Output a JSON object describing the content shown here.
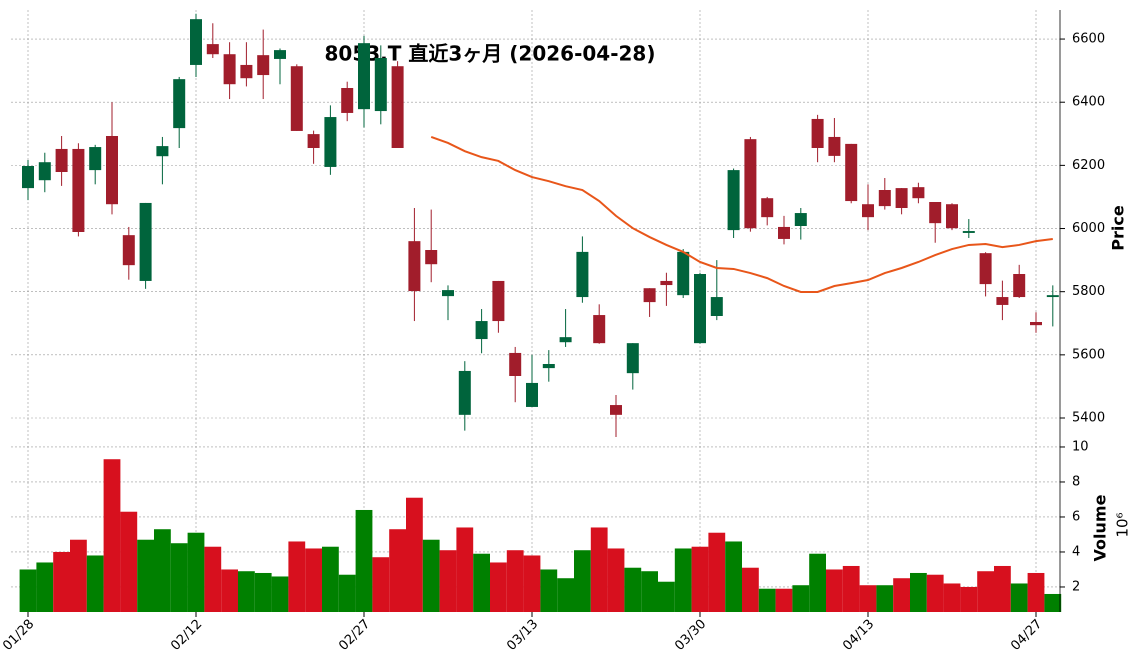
{
  "chart_data": [
    {
      "type": "candlestick",
      "title": "8053.T 直近3ヶ月 (2026-04-28)",
      "ylabel": "Price",
      "open": [
        6128,
        6153,
        6252,
        6252,
        6185,
        6293,
        5979,
        5834,
        6229,
        6318,
        6518,
        6584,
        6552,
        6518,
        6549,
        6537,
        6514,
        6299,
        6195,
        6445,
        6378,
        6372,
        6514,
        5960,
        5932,
        5786,
        5410,
        5650,
        5834,
        5606,
        5435,
        5558,
        5640,
        5783,
        5726,
        5441,
        5542,
        5811,
        5834,
        5789,
        5637,
        5723,
        5995,
        6283,
        6096,
        6005,
        6008,
        6347,
        6290,
        6268,
        6077,
        6122,
        6128,
        6131,
        6084,
        6077,
        5986,
        5922,
        5783,
        5856,
        5704,
        5783
      ],
      "high": [
        6217,
        6240,
        6293,
        6270,
        6265,
        6400,
        6005,
        6081,
        6290,
        6480,
        6680,
        6650,
        6590,
        6590,
        6630,
        6570,
        6520,
        6310,
        6390,
        6465,
        6610,
        6580,
        6530,
        6065,
        6060,
        5820,
        5580,
        5745,
        5834,
        5625,
        5600,
        5615,
        5745,
        5975,
        5760,
        5473,
        5637,
        5811,
        5860,
        5935,
        5860,
        5900,
        6190,
        6290,
        6100,
        6040,
        6065,
        6360,
        6350,
        6268,
        6140,
        6160,
        6128,
        6145,
        6084,
        6080,
        6030,
        5925,
        5835,
        5885,
        5735,
        5820
      ],
      "low": [
        6090,
        6115,
        6135,
        5975,
        6140,
        6045,
        5838,
        5809,
        6140,
        6255,
        6480,
        6540,
        6410,
        6450,
        6410,
        6457,
        6309,
        6205,
        6170,
        6340,
        6320,
        6330,
        6255,
        5707,
        5830,
        5710,
        5360,
        5605,
        5670,
        5450,
        5435,
        5515,
        5625,
        5765,
        5635,
        5340,
        5490,
        5720,
        5755,
        5780,
        5635,
        5710,
        5970,
        5990,
        6010,
        5950,
        5965,
        6210,
        6210,
        6080,
        5995,
        6060,
        6045,
        6080,
        5955,
        5995,
        5970,
        5785,
        5710,
        5780,
        5670,
        5690
      ],
      "close": [
        6198,
        6210,
        6179,
        5989,
        6258,
        6077,
        5884,
        6081,
        6261,
        6473,
        6663,
        6552,
        6457,
        6476,
        6486,
        6565,
        6309,
        6255,
        6353,
        6366,
        6587,
        6540,
        6255,
        5802,
        5887,
        5805,
        5549,
        5707,
        5707,
        5533,
        5511,
        5571,
        5656,
        5926,
        5637,
        5410,
        5637,
        5767,
        5821,
        5926,
        5856,
        5783,
        6185,
        6001,
        6036,
        5967,
        6049,
        6255,
        6230,
        6087,
        6036,
        6071,
        6065,
        6096,
        6017,
        6001,
        5992,
        5824,
        5758,
        5783,
        5694,
        5789
      ],
      "up_color": "#00643c",
      "down_color": "#a11d2b",
      "series": [
        {
          "color": "#e8561a",
          "values": [
            null,
            null,
            null,
            null,
            null,
            null,
            null,
            null,
            null,
            null,
            null,
            null,
            null,
            null,
            null,
            null,
            null,
            null,
            null,
            null,
            null,
            null,
            null,
            null,
            6290,
            6271,
            6245,
            6226,
            6214,
            6185,
            6163,
            6150,
            6134,
            6122,
            6087,
            6040,
            6001,
            5973,
            5948,
            5926,
            5894,
            5875,
            5872,
            5859,
            5843,
            5818,
            5799,
            5799,
            5818,
            5827,
            5837,
            5859,
            5875,
            5894,
            5916,
            5935,
            5948,
            5951,
            5941,
            5948,
            5960,
            5967
          ]
        }
      ],
      "ylim": [
        5362,
        6692
      ],
      "yticks": [
        5400,
        5600,
        5800,
        6000,
        6200,
        6400,
        6600
      ],
      "grid": true
    },
    {
      "type": "bar",
      "ylabel": "Volume",
      "offset_label": "10⁶",
      "categories": [
        "01/28",
        null,
        null,
        null,
        null,
        null,
        null,
        null,
        null,
        null,
        "02/12",
        null,
        null,
        null,
        null,
        null,
        null,
        null,
        null,
        null,
        "02/27",
        null,
        null,
        null,
        null,
        null,
        null,
        null,
        null,
        null,
        "03/13",
        null,
        null,
        null,
        null,
        null,
        null,
        null,
        null,
        null,
        "03/30",
        null,
        null,
        null,
        null,
        null,
        null,
        null,
        null,
        null,
        "04/13",
        null,
        null,
        null,
        null,
        null,
        null,
        null,
        null,
        null,
        "04/27",
        null
      ],
      "values": [
        3.0,
        3.4,
        4.0,
        4.7,
        3.8,
        9.3,
        6.3,
        4.7,
        5.3,
        4.5,
        5.1,
        4.3,
        3.0,
        2.9,
        2.8,
        2.6,
        4.6,
        4.2,
        4.3,
        2.7,
        6.4,
        3.7,
        5.3,
        7.1,
        4.7,
        4.1,
        5.4,
        3.9,
        3.4,
        4.1,
        3.8,
        3.0,
        2.5,
        4.1,
        5.4,
        4.2,
        3.1,
        2.9,
        2.3,
        4.2,
        4.3,
        5.1,
        4.6,
        3.1,
        1.9,
        1.9,
        2.1,
        3.9,
        3.0,
        3.2,
        2.1,
        2.1,
        2.5,
        2.8,
        2.7,
        2.2,
        2.0,
        2.9,
        3.2,
        2.2,
        2.8,
        1.6
      ],
      "colors": [
        "#008000",
        "#008000",
        "#d7101e",
        "#d7101e",
        "#008000",
        "#d7101e",
        "#d7101e",
        "#008000",
        "#008000",
        "#008000",
        "#008000",
        "#d7101e",
        "#d7101e",
        "#008000",
        "#008000",
        "#008000",
        "#d7101e",
        "#d7101e",
        "#008000",
        "#008000",
        "#008000",
        "#d7101e",
        "#d7101e",
        "#d7101e",
        "#008000",
        "#d7101e",
        "#d7101e",
        "#008000",
        "#d7101e",
        "#d7101e",
        "#d7101e",
        "#008000",
        "#008000",
        "#008000",
        "#d7101e",
        "#d7101e",
        "#008000",
        "#008000",
        "#008000",
        "#008000",
        "#d7101e",
        "#d7101e",
        "#008000",
        "#d7101e",
        "#008000",
        "#d7101e",
        "#008000",
        "#008000",
        "#d7101e",
        "#d7101e",
        "#d7101e",
        "#008000",
        "#d7101e",
        "#008000",
        "#d7101e",
        "#d7101e",
        "#d7101e",
        "#d7101e",
        "#d7101e",
        "#008000",
        "#d7101e",
        "#008000"
      ],
      "ylim": [
        0.57,
        10.97
      ],
      "yticks": [
        2,
        4,
        6,
        8,
        10
      ],
      "grid": true
    }
  ]
}
